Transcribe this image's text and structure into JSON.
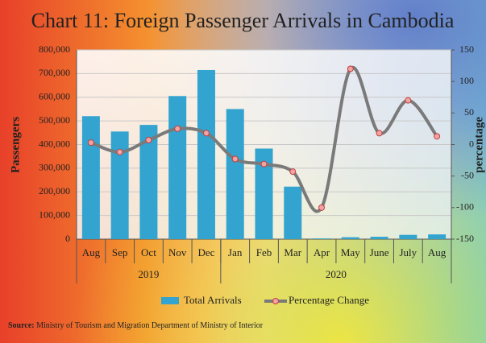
{
  "chart_data": {
    "type": "bar-line",
    "title": "Chart 11: Foreign Passenger Arrivals in Cambodia",
    "ylabel": "Passengers",
    "y2label": "percentage",
    "groups": [
      {
        "name": "2019",
        "categories": [
          "Aug",
          "Sep",
          "Oct",
          "Nov",
          "Dec"
        ]
      },
      {
        "name": "2020",
        "categories": [
          "Jan",
          "Feb",
          "Mar",
          "Apr",
          "May",
          "June",
          "July",
          "Aug"
        ]
      }
    ],
    "series": [
      {
        "name": "Total Arrivals",
        "type": "bar",
        "color": "#33a3cf",
        "values": [
          520000,
          455000,
          483000,
          605000,
          715000,
          550000,
          383000,
          222000,
          3000,
          8000,
          10000,
          18000,
          20000
        ]
      },
      {
        "name": "Percentage Change",
        "type": "line",
        "axis": "y2",
        "color": "#7a7a7a",
        "marker_color": "#f3a3a3",
        "values": [
          3,
          -12,
          7,
          25,
          18,
          -23,
          -31,
          -43,
          -100,
          120,
          18,
          70,
          13
        ]
      }
    ],
    "ylim": [
      0,
      800000
    ],
    "yticks": [
      0,
      {
        "value": 100000,
        "label": "100,000"
      },
      {
        "value": 200000,
        "label": "200,000"
      },
      {
        "value": 300000,
        "label": "300,000"
      },
      {
        "value": 400000,
        "label": "400,000"
      },
      {
        "value": 500000,
        "label": "500,000"
      },
      {
        "value": 600000,
        "label": "600,000"
      },
      {
        "value": 700000,
        "label": "700,000"
      },
      {
        "value": 800000,
        "label": "800,000"
      }
    ],
    "y2lim": [
      -150,
      150
    ],
    "y2ticks": [
      -150,
      -100,
      -50,
      0,
      50,
      100,
      150
    ],
    "grid": true,
    "legend": "bottom",
    "source_label": "Source:",
    "source": "Ministry of Tourism and Migration Department of Ministry of Interior"
  }
}
